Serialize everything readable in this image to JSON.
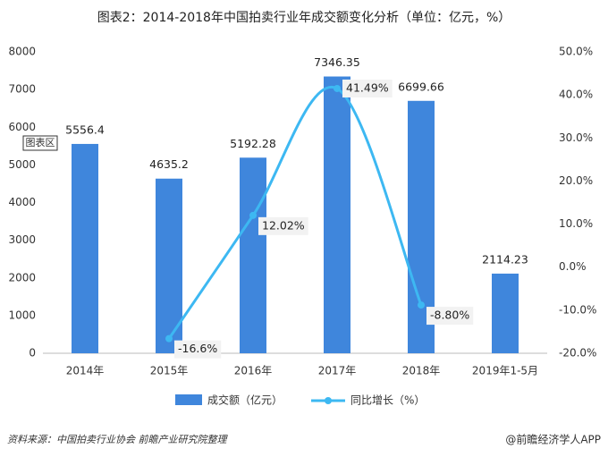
{
  "chart_data": {
    "type": "bar_line",
    "title": "图表2：2014-2018年中国拍卖行业年成交额变化分析（单位：亿元，%）",
    "categories": [
      "2014年",
      "2015年",
      "2016年",
      "2017年",
      "2018年",
      "2019年1-5月"
    ],
    "series": [
      {
        "name": "成交额（亿元）",
        "color": "#3f86dc",
        "values": [
          5556.4,
          4635.2,
          5192.28,
          7346.35,
          6699.66,
          2114.23
        ]
      },
      {
        "name": "同比增长（%）",
        "color": "#3db8f2",
        "axis": "y2",
        "values": [
          null,
          -16.6,
          12.02,
          41.49,
          -8.8,
          null
        ],
        "value_labels": [
          null,
          "-16.6%",
          "12.02%",
          "41.49%",
          "-8.80%",
          null
        ]
      }
    ],
    "ylim": [
      0,
      8000
    ],
    "yticks": [
      0,
      1000,
      2000,
      3000,
      4000,
      5000,
      6000,
      7000,
      8000
    ],
    "y2lim": [
      -20,
      50
    ],
    "y2ticks": [
      {
        "value": -20,
        "label": "-20.0%"
      },
      {
        "value": -10,
        "label": "-10.0%"
      },
      {
        "value": 0,
        "label": "0.0%"
      },
      {
        "value": 10,
        "label": "10.0%"
      },
      {
        "value": 20,
        "label": "20.0%"
      },
      {
        "value": 30,
        "label": "30.0%"
      },
      {
        "value": 40,
        "label": "40.0%"
      },
      {
        "value": 50,
        "label": "50.0%"
      }
    ],
    "tooltip": "图表区",
    "source": "资料来源：中国拍卖行业协会 前瞻产业研究院整理",
    "brand": "@前瞻经济学人APP"
  }
}
